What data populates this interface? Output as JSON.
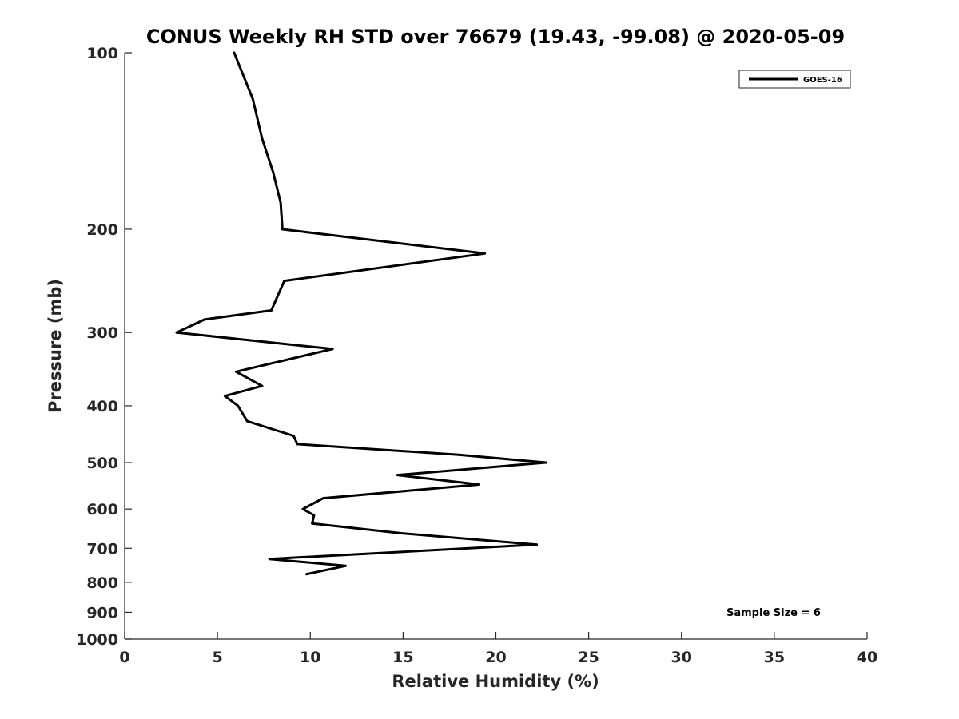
{
  "chart_data": {
    "type": "line",
    "title": "CONUS Weekly RH STD over 76679 (19.43, -99.08) @ 2020-05-09",
    "xlabel": "Relative Humidity (%)",
    "ylabel": "Pressure (mb)",
    "xlim": [
      0,
      40
    ],
    "ylim": [
      100,
      1000
    ],
    "yscale": "log",
    "y_reversed": true,
    "xticks": [
      0,
      5,
      10,
      15,
      20,
      25,
      30,
      35,
      40
    ],
    "yticks": [
      100,
      200,
      300,
      400,
      500,
      600,
      700,
      800,
      900,
      1000
    ],
    "grid": false,
    "legend_position": "top-right",
    "series": [
      {
        "name": "GOES-16",
        "color": "#000000",
        "x": [
          5.9,
          6.9,
          7.4,
          8.0,
          8.4,
          8.5,
          19.4,
          8.6,
          7.9,
          4.3,
          2.8,
          11.2,
          6.0,
          7.4,
          5.4,
          6.1,
          6.6,
          9.1,
          9.3,
          18.0,
          22.7,
          14.7,
          19.1,
          10.7,
          9.6,
          10.2,
          10.1,
          14.9,
          22.2,
          7.8,
          11.9,
          9.8
        ],
        "y": [
          100,
          120,
          140,
          160,
          180,
          200,
          220,
          245,
          275,
          285,
          300,
          320,
          350,
          370,
          385,
          400,
          425,
          450,
          465,
          485,
          500,
          525,
          545,
          575,
          600,
          615,
          635,
          660,
          690,
          730,
          750,
          775
        ]
      }
    ],
    "annotations": [
      "Sample Size = 6"
    ]
  }
}
